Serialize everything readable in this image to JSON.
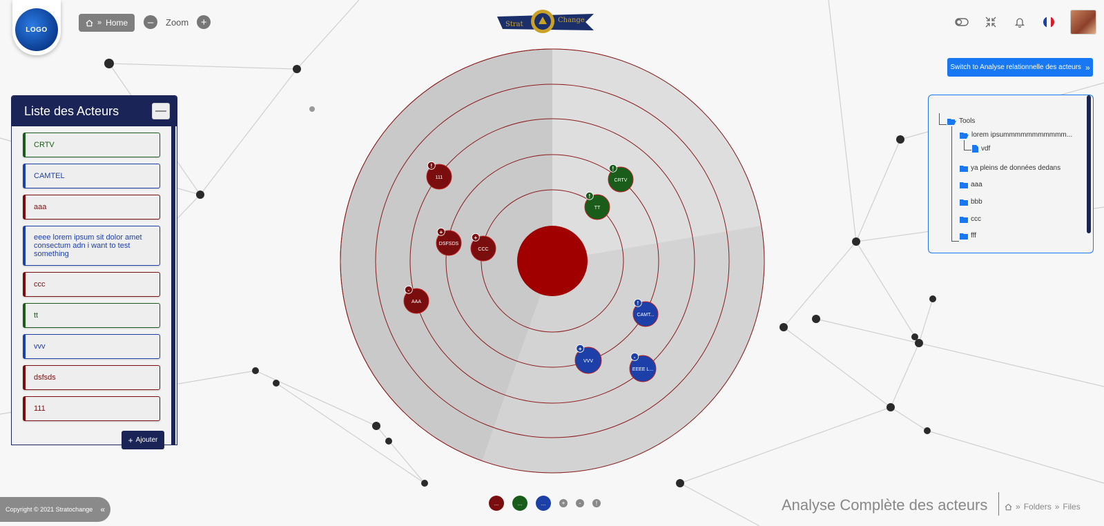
{
  "header": {
    "logo_text": "LOGO",
    "home_label": "Home",
    "zoom_label": "Zoom",
    "zoom_out": "–",
    "zoom_in": "+",
    "brand_left": "Strat",
    "brand_right": "Change"
  },
  "switch_button": {
    "label": "Switch to Analyse relationnelle des acteurs"
  },
  "actors_panel": {
    "title": "Liste des Acteurs",
    "minimize": "—",
    "add_label": "Ajouter",
    "items": [
      {
        "label": "CRTV",
        "color": "#1a5c1a"
      },
      {
        "label": "CAMTEL",
        "color": "#1d3fa8"
      },
      {
        "label": "aaa",
        "color": "#7a0e0e"
      },
      {
        "label": "eeee lorem ipsum sit dolor amet consectum adn i want to test something",
        "color": "#1d3fa8"
      },
      {
        "label": "ccc",
        "color": "#7a0e0e"
      },
      {
        "label": "tt",
        "color": "#1a5c1a"
      },
      {
        "label": "vvv",
        "color": "#1d3fa8"
      },
      {
        "label": "dsfsds",
        "color": "#7a0e0e"
      },
      {
        "label": "111",
        "color": "#7a0e0e"
      }
    ]
  },
  "radar_nodes": [
    {
      "label": "111",
      "badge": "!",
      "color": "#7a0e0e"
    },
    {
      "label": "CRTV",
      "badge": "!",
      "color": "#1a5c1a"
    },
    {
      "label": "TT",
      "badge": "!",
      "color": "#1a5c1a"
    },
    {
      "label": "DSFSDS",
      "badge": "+",
      "color": "#7a0e0e"
    },
    {
      "label": "CCC",
      "badge": "+",
      "color": "#7a0e0e"
    },
    {
      "label": "AAA",
      "badge": "-",
      "color": "#7a0e0e"
    },
    {
      "label": "CAMT...",
      "badge": "!",
      "color": "#1d3fa8"
    },
    {
      "label": "VVV",
      "badge": "+",
      "color": "#1d3fa8"
    },
    {
      "label": "EEEE L...",
      "badge": "-",
      "color": "#1d3fa8"
    }
  ],
  "tree": {
    "root": "Tools",
    "child": "lorem ipsummmmmmmmmmm...",
    "file": "vdf",
    "folders": [
      "ya pleins de données dedans",
      "aaa",
      "bbb",
      "ccc",
      "fff"
    ]
  },
  "footer": {
    "copyright": "Copyright © 2021 Stratochange",
    "collapse": "«",
    "legend": [
      {
        "label": "...",
        "color": "#7a0e0e"
      },
      {
        "label": "...",
        "color": "#1a5c1a"
      },
      {
        "label": "...",
        "color": "#1d3fa8"
      }
    ],
    "legend_symbols": [
      "+",
      "-",
      "!"
    ],
    "page_title": "Analyse Complète des acteurs",
    "breadcrumbs": [
      "Folders",
      "Files"
    ]
  }
}
